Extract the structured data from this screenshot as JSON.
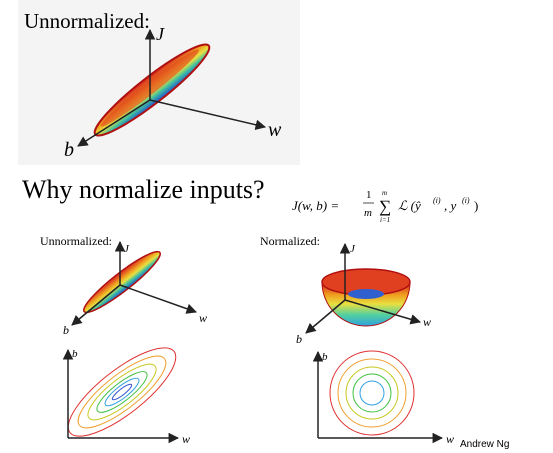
{
  "top_panel": {
    "title": "Unnormalized:",
    "axis_j": "J",
    "axis_w": "w",
    "axis_b": "b"
  },
  "heading": "Why normalize inputs?",
  "formula": {
    "lhs": "J(w, b) =",
    "numerator": "1",
    "denominator": "m",
    "sigma": "∑",
    "upper": "m",
    "lower": "i=1",
    "loss": "ℒ (ŷ",
    "sup1": "(i)",
    "mid": ", y",
    "sup2": "(i)",
    "close": ")"
  },
  "left_panel": {
    "title": "Unnormalized:",
    "axis_j": "J",
    "axis_w": "w",
    "axis_b": "b",
    "contour_b": "b",
    "contour_w": "w"
  },
  "right_panel": {
    "title": "Normalized:",
    "axis_j": "J",
    "axis_w": "w",
    "axis_b": "b",
    "contour_b": "b",
    "contour_w": "w"
  },
  "credit": "Andrew Ng"
}
